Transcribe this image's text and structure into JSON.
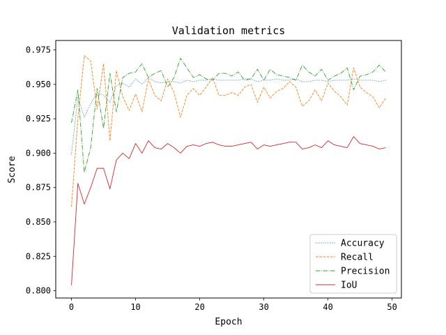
{
  "chart_data": {
    "type": "line",
    "title": "Validation metrics",
    "xlabel": "Epoch",
    "ylabel": "Score",
    "xlim": [
      -2.45,
      51.45
    ],
    "ylim": [
      0.7947,
      0.9819
    ],
    "xticks": [
      0,
      10,
      20,
      30,
      40,
      50
    ],
    "yticks": [
      0.8,
      0.825,
      0.85,
      0.875,
      0.9,
      0.925,
      0.95,
      0.975
    ],
    "ytick_labels": [
      "0.800",
      "0.825",
      "0.850",
      "0.875",
      "0.900",
      "0.925",
      "0.950",
      "0.975"
    ],
    "grid": false,
    "legend_position": "lower-right",
    "x": [
      0,
      1,
      2,
      3,
      4,
      5,
      6,
      7,
      8,
      9,
      10,
      11,
      12,
      13,
      14,
      15,
      16,
      17,
      18,
      19,
      20,
      21,
      22,
      23,
      24,
      25,
      26,
      27,
      28,
      29,
      30,
      31,
      32,
      33,
      34,
      35,
      36,
      37,
      38,
      39,
      40,
      41,
      42,
      43,
      44,
      45,
      46,
      47,
      48,
      49
    ],
    "series": [
      {
        "name": "Accuracy",
        "color": "#1f77b4",
        "dash": "dotted",
        "values": [
          0.899,
          0.941,
          0.926,
          0.936,
          0.944,
          0.942,
          0.937,
          0.949,
          0.951,
          0.948,
          0.954,
          0.95,
          0.955,
          0.952,
          0.951,
          0.952,
          0.952,
          0.951,
          0.953,
          0.952,
          0.953,
          0.953,
          0.954,
          0.953,
          0.953,
          0.953,
          0.953,
          0.954,
          0.954,
          0.952,
          0.953,
          0.953,
          0.954,
          0.953,
          0.953,
          0.954,
          0.952,
          0.952,
          0.953,
          0.953,
          0.952,
          0.953,
          0.953,
          0.953,
          0.954,
          0.953,
          0.953,
          0.953,
          0.952,
          0.953
        ]
      },
      {
        "name": "Recall",
        "color": "#ff7f0e",
        "dash": "dashed",
        "values": [
          0.861,
          0.925,
          0.971,
          0.967,
          0.932,
          0.965,
          0.909,
          0.96,
          0.941,
          0.931,
          0.943,
          0.93,
          0.954,
          0.942,
          0.938,
          0.954,
          0.944,
          0.926,
          0.942,
          0.947,
          0.942,
          0.948,
          0.955,
          0.942,
          0.942,
          0.944,
          0.942,
          0.948,
          0.95,
          0.937,
          0.948,
          0.94,
          0.945,
          0.947,
          0.952,
          0.948,
          0.934,
          0.938,
          0.946,
          0.938,
          0.951,
          0.945,
          0.941,
          0.935,
          0.962,
          0.948,
          0.944,
          0.941,
          0.933,
          0.94
        ]
      },
      {
        "name": "Precision",
        "color": "#2ca02c",
        "dash": "dashdot",
        "values": [
          0.922,
          0.946,
          0.886,
          0.904,
          0.947,
          0.918,
          0.958,
          0.93,
          0.955,
          0.958,
          0.959,
          0.965,
          0.955,
          0.958,
          0.96,
          0.948,
          0.955,
          0.969,
          0.962,
          0.955,
          0.957,
          0.954,
          0.953,
          0.958,
          0.958,
          0.956,
          0.959,
          0.953,
          0.954,
          0.961,
          0.953,
          0.961,
          0.957,
          0.956,
          0.955,
          0.953,
          0.964,
          0.959,
          0.956,
          0.961,
          0.953,
          0.956,
          0.958,
          0.962,
          0.946,
          0.956,
          0.957,
          0.959,
          0.964,
          0.959
        ]
      },
      {
        "name": "IoU",
        "color": "#d62728",
        "dash": "solid",
        "values": [
          0.804,
          0.878,
          0.863,
          0.875,
          0.889,
          0.889,
          0.874,
          0.895,
          0.9,
          0.896,
          0.907,
          0.9,
          0.909,
          0.904,
          0.903,
          0.907,
          0.904,
          0.9,
          0.905,
          0.906,
          0.905,
          0.907,
          0.908,
          0.906,
          0.905,
          0.905,
          0.906,
          0.907,
          0.908,
          0.903,
          0.906,
          0.905,
          0.906,
          0.907,
          0.908,
          0.908,
          0.903,
          0.904,
          0.906,
          0.904,
          0.909,
          0.906,
          0.905,
          0.904,
          0.912,
          0.907,
          0.906,
          0.905,
          0.903,
          0.904
        ]
      }
    ]
  }
}
